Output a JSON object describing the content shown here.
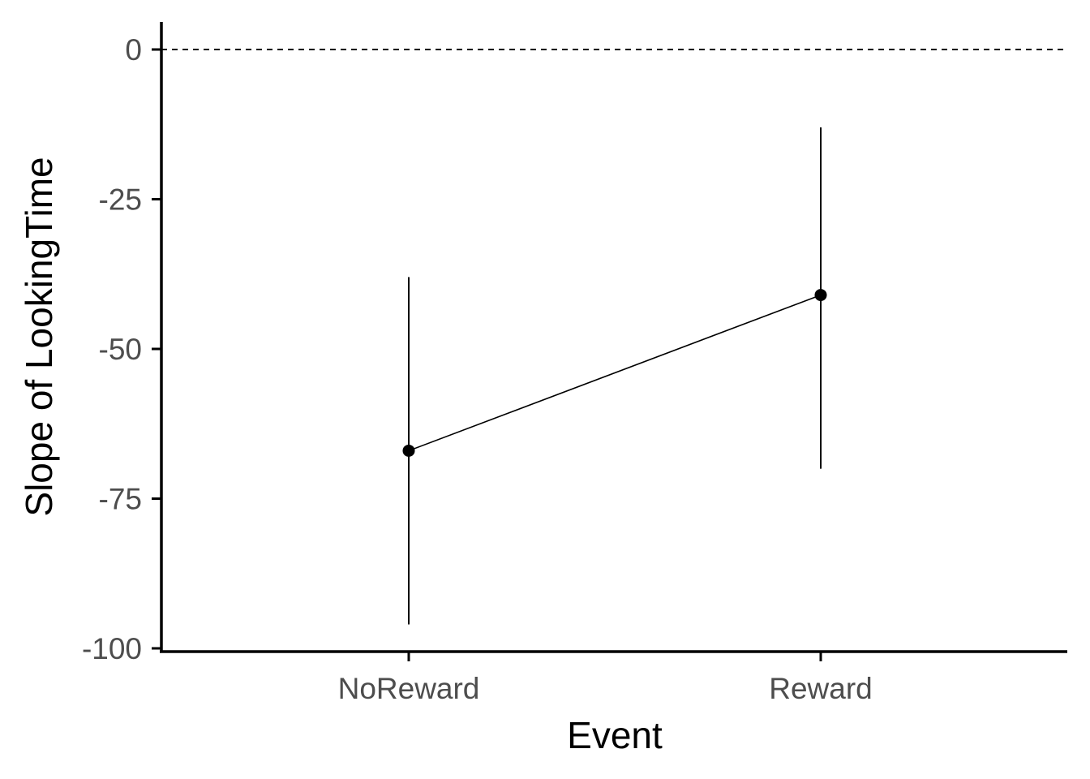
{
  "chart_data": {
    "type": "line",
    "title": "",
    "xlabel": "Event",
    "ylabel": "Slope of LookingTime",
    "categories": [
      "NoReward",
      "Reward"
    ],
    "series": [
      {
        "values": [
          -67,
          -41
        ],
        "error_lower": [
          -96,
          -70
        ],
        "error_upper": [
          -38,
          -13
        ]
      }
    ],
    "ylim": [
      -100,
      5
    ],
    "yticks": [
      0,
      -25,
      -50,
      -75,
      -100
    ],
    "ytick_labels": [
      "0",
      "-25",
      "-50",
      "-75",
      "-100"
    ],
    "reference_line": {
      "y": 0,
      "style": "dashed"
    },
    "grid": false,
    "legend": "none",
    "colors": {
      "line": "#000000",
      "point": "#000000",
      "tick_text": "#4d4d4d",
      "axis": "#000000"
    }
  }
}
